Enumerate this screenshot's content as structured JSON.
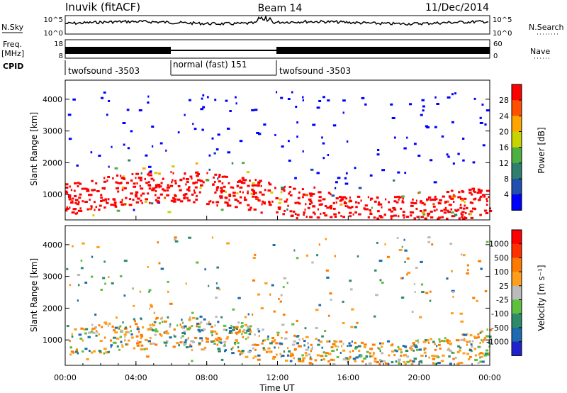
{
  "header": {
    "station": "Inuvik (fitACF)",
    "beam": "Beam 14",
    "date": "11/Dec/2014"
  },
  "strips": {
    "nsky_label": "N.Sky",
    "nsky_ticks": [
      "10^5",
      "10^0"
    ],
    "nsearch_label": "N.Search",
    "freq_label_1": "Freq.",
    "freq_label_2": "[MHz]",
    "freq_ticks": [
      "18",
      "8"
    ],
    "nave_ticks": [
      "60",
      "0"
    ],
    "nave_label": "Nave",
    "cpid_label": "CPID",
    "cpid_segments": [
      {
        "label": "twofsound -3503",
        "start": 0,
        "end": 6
      },
      {
        "label": "normal (fast) 151",
        "start": 6,
        "end": 12
      },
      {
        "label": "twofsound -3503",
        "start": 12,
        "end": 24
      }
    ]
  },
  "chart_data": [
    {
      "type": "heatmap",
      "name": "power",
      "ylabel": "Slant Range [km]",
      "ylim": [
        200,
        4600
      ],
      "yticks": [
        "1000",
        "2000",
        "3000",
        "4000"
      ],
      "colorbar_label": "Power [dB]",
      "colorbar_ticks": [
        "28",
        "24",
        "20",
        "16",
        "12",
        "8",
        "4"
      ],
      "colors": [
        "#0000ff",
        "#1f4faf",
        "#2f7f6f",
        "#4faf3f",
        "#c8d400",
        "#ffa500",
        "#ff5000",
        "#ff0000"
      ]
    },
    {
      "type": "heatmap",
      "name": "velocity",
      "ylabel": "Slant Range [km]",
      "ylim": [
        200,
        4600
      ],
      "yticks": [
        "1000",
        "2000",
        "3000",
        "4000"
      ],
      "colorbar_label": "Velocity [m s⁻¹]",
      "colorbar_ticks": [
        "1000",
        "500",
        "100",
        "25",
        "-25",
        "-100",
        "-500",
        "-1000"
      ],
      "colors": [
        "#2222cc",
        "#1d6ab0",
        "#2f8a6a",
        "#5fbf3f",
        "#bbbbbb",
        "#ff9e1a",
        "#ff7a00",
        "#ff3000",
        "#ff0000"
      ]
    }
  ],
  "xaxis": {
    "label": "Time UT",
    "xlim": [
      0,
      24
    ],
    "ticks": [
      "00:00",
      "04:00",
      "08:00",
      "12:00",
      "16:00",
      "20:00",
      "00:00"
    ],
    "minor_step": 1
  }
}
